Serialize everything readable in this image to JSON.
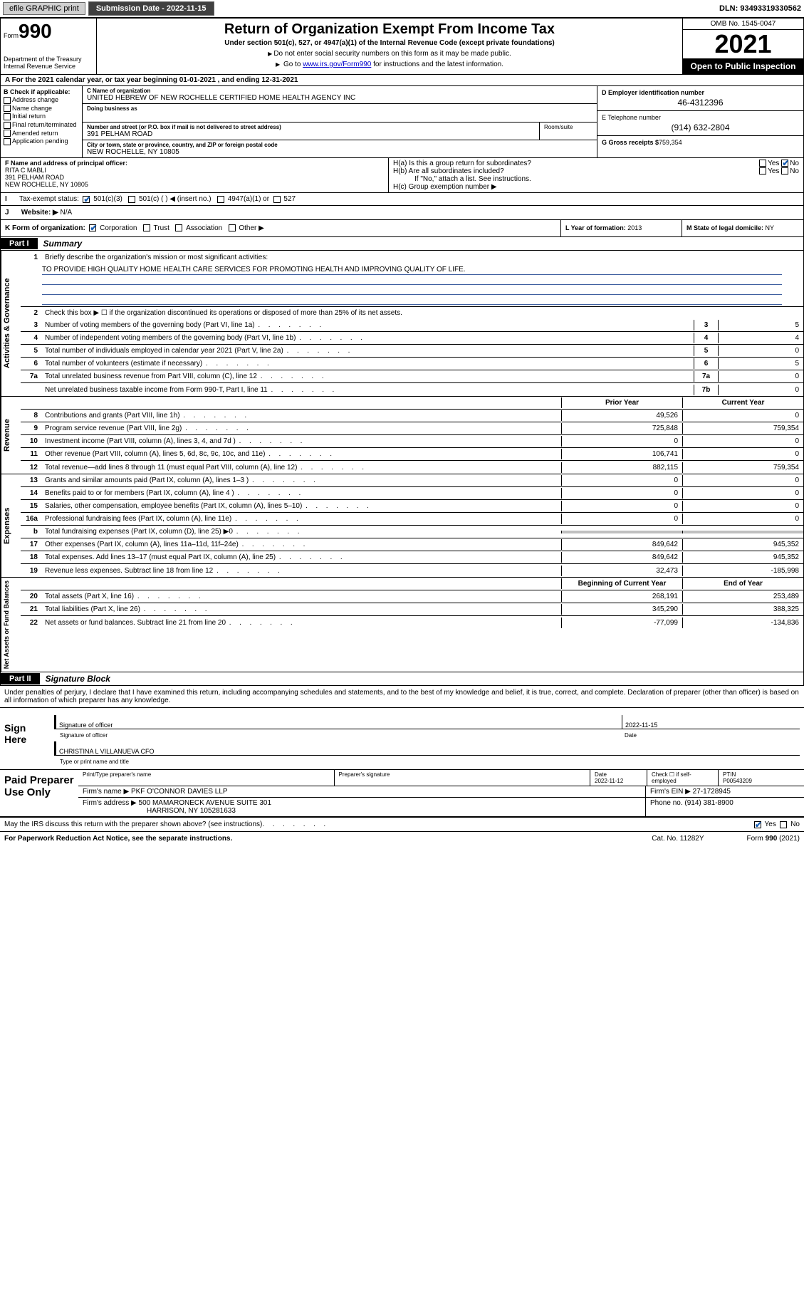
{
  "topbar": {
    "efile": "efile GRAPHIC print",
    "subdate_lbl": "Submission Date - 2022-11-15",
    "dln": "DLN: 93493319330562"
  },
  "header": {
    "form_prefix": "Form",
    "form_no": "990",
    "title": "Return of Organization Exempt From Income Tax",
    "sub": "Under section 501(c), 527, or 4947(a)(1) of the Internal Revenue Code (except private foundations)",
    "note1": "Do not enter social security numbers on this form as it may be made public.",
    "note2_pre": "Go to ",
    "note2_link": "www.irs.gov/Form990",
    "note2_post": " for instructions and the latest information.",
    "dept": "Department of the Treasury\nInternal Revenue Service",
    "omb": "OMB No. 1545-0047",
    "year": "2021",
    "open": "Open to Public Inspection"
  },
  "row_a": "For the 2021 calendar year, or tax year beginning 01-01-2021   , and ending 12-31-2021",
  "col_b": {
    "hdr": "B Check if applicable:",
    "items": [
      "Address change",
      "Name change",
      "Initial return",
      "Final return/terminated",
      "Amended return",
      "Application pending"
    ]
  },
  "col_c": {
    "name_lbl": "C Name of organization",
    "name": "UNITED HEBREW OF NEW ROCHELLE CERTIFIED HOME HEALTH AGENCY INC",
    "dba_lbl": "Doing business as",
    "street_lbl": "Number and street (or P.O. box if mail is not delivered to street address)",
    "street": "391 PELHAM ROAD",
    "suite_lbl": "Room/suite",
    "city_lbl": "City or town, state or province, country, and ZIP or foreign postal code",
    "city": "NEW ROCHELLE, NY  10805"
  },
  "col_d": {
    "ein_lbl": "D Employer identification number",
    "ein": "46-4312396",
    "tel_lbl": "E Telephone number",
    "tel": "(914) 632-2804",
    "gross_lbl": "G Gross receipts $",
    "gross": "759,354"
  },
  "row_f": {
    "lbl": "F Name and address of principal officer:",
    "name": "RITA C MABLI",
    "addr1": "391 PELHAM ROAD",
    "addr2": "NEW ROCHELLE, NY  10805"
  },
  "row_h": {
    "ha": "H(a)  Is this a group return for subordinates?",
    "hb": "H(b)  Are all subordinates included?",
    "hb_note": "If \"No,\" attach a list. See instructions.",
    "hc": "H(c)  Group exemption number ▶",
    "yes": "Yes",
    "no": "No"
  },
  "row_i": {
    "lbl": "Tax-exempt status:",
    "opt1": "501(c)(3)",
    "opt2": "501(c) (   ) ◀ (insert no.)",
    "opt3": "4947(a)(1) or",
    "opt4": "527"
  },
  "row_j": {
    "lbl": "Website: ▶",
    "val": "N/A"
  },
  "row_k": {
    "lbl": "K Form of organization:",
    "opts": [
      "Corporation",
      "Trust",
      "Association",
      "Other ▶"
    ]
  },
  "row_l": {
    "lbl": "L Year of formation:",
    "val": "2013"
  },
  "row_m": {
    "lbl": "M State of legal domicile:",
    "val": "NY"
  },
  "parts": {
    "p1": "Part I",
    "p1t": "Summary",
    "p2": "Part II",
    "p2t": "Signature Block"
  },
  "mission_lbl": "Briefly describe the organization's mission or most significant activities:",
  "mission": "TO PROVIDE HIGH QUALITY HOME HEALTH CARE SERVICES FOR PROMOTING HEALTH AND IMPROVING QUALITY OF LIFE.",
  "line2": "Check this box ▶ ☐  if the organization discontinued its operations or disposed of more than 25% of its net assets.",
  "gov_lines": [
    {
      "n": "3",
      "t": "Number of voting members of the governing body (Part VI, line 1a)",
      "b": "3",
      "v": "5"
    },
    {
      "n": "4",
      "t": "Number of independent voting members of the governing body (Part VI, line 1b)",
      "b": "4",
      "v": "4"
    },
    {
      "n": "5",
      "t": "Total number of individuals employed in calendar year 2021 (Part V, line 2a)",
      "b": "5",
      "v": "0"
    },
    {
      "n": "6",
      "t": "Total number of volunteers (estimate if necessary)",
      "b": "6",
      "v": "5"
    },
    {
      "n": "7a",
      "t": "Total unrelated business revenue from Part VIII, column (C), line 12",
      "b": "7a",
      "v": "0"
    },
    {
      "n": "",
      "t": "Net unrelated business taxable income from Form 990-T, Part I, line 11",
      "b": "7b",
      "v": "0"
    }
  ],
  "col_hdrs": {
    "py": "Prior Year",
    "cy": "Current Year",
    "boy": "Beginning of Current Year",
    "eoy": "End of Year"
  },
  "rev_lines": [
    {
      "n": "8",
      "t": "Contributions and grants (Part VIII, line 1h)",
      "py": "49,526",
      "cy": "0"
    },
    {
      "n": "9",
      "t": "Program service revenue (Part VIII, line 2g)",
      "py": "725,848",
      "cy": "759,354"
    },
    {
      "n": "10",
      "t": "Investment income (Part VIII, column (A), lines 3, 4, and 7d )",
      "py": "0",
      "cy": "0"
    },
    {
      "n": "11",
      "t": "Other revenue (Part VIII, column (A), lines 5, 6d, 8c, 9c, 10c, and 11e)",
      "py": "106,741",
      "cy": "0"
    },
    {
      "n": "12",
      "t": "Total revenue—add lines 8 through 11 (must equal Part VIII, column (A), line 12)",
      "py": "882,115",
      "cy": "759,354"
    }
  ],
  "exp_lines": [
    {
      "n": "13",
      "t": "Grants and similar amounts paid (Part IX, column (A), lines 1–3 )",
      "py": "0",
      "cy": "0"
    },
    {
      "n": "14",
      "t": "Benefits paid to or for members (Part IX, column (A), line 4 )",
      "py": "0",
      "cy": "0"
    },
    {
      "n": "15",
      "t": "Salaries, other compensation, employee benefits (Part IX, column (A), lines 5–10)",
      "py": "0",
      "cy": "0"
    },
    {
      "n": "16a",
      "t": "Professional fundraising fees (Part IX, column (A), line 11e)",
      "py": "0",
      "cy": "0"
    },
    {
      "n": "b",
      "t": "Total fundraising expenses (Part IX, column (D), line 25) ▶0",
      "py": "",
      "cy": "",
      "shade": true
    },
    {
      "n": "17",
      "t": "Other expenses (Part IX, column (A), lines 11a–11d, 11f–24e)",
      "py": "849,642",
      "cy": "945,352"
    },
    {
      "n": "18",
      "t": "Total expenses. Add lines 13–17 (must equal Part IX, column (A), line 25)",
      "py": "849,642",
      "cy": "945,352"
    },
    {
      "n": "19",
      "t": "Revenue less expenses. Subtract line 18 from line 12",
      "py": "32,473",
      "cy": "-185,998"
    }
  ],
  "bal_lines": [
    {
      "n": "20",
      "t": "Total assets (Part X, line 16)",
      "py": "268,191",
      "cy": "253,489"
    },
    {
      "n": "21",
      "t": "Total liabilities (Part X, line 26)",
      "py": "345,290",
      "cy": "388,325"
    },
    {
      "n": "22",
      "t": "Net assets or fund balances. Subtract line 21 from line 20",
      "py": "-77,099",
      "cy": "-134,836"
    }
  ],
  "penalty": "Under penalties of perjury, I declare that I have examined this return, including accompanying schedules and statements, and to the best of my knowledge and belief, it is true, correct, and complete. Declaration of preparer (other than officer) is based on all information of which preparer has any knowledge.",
  "sign": {
    "hdr": "Sign Here",
    "sig_lbl": "Signature of officer",
    "date_lbl": "Date",
    "date": "2022-11-15",
    "name": "CHRISTINA L VILLANUEVA  CFO",
    "name_lbl": "Type or print name and title"
  },
  "paid": {
    "hdr": "Paid Preparer Use Only",
    "cols": [
      "Print/Type preparer's name",
      "Preparer's signature",
      "Date",
      "Check ☐ if self-employed",
      "PTIN"
    ],
    "date": "2022-11-12",
    "ptin": "P00543209",
    "firm_lbl": "Firm's name    ▶",
    "firm": "PKF O'CONNOR DAVIES LLP",
    "ein_lbl": "Firm's EIN ▶",
    "ein": "27-1728945",
    "addr_lbl": "Firm's address ▶",
    "addr1": "500 MAMARONECK AVENUE SUITE 301",
    "addr2": "HARRISON, NY  105281633",
    "phone_lbl": "Phone no.",
    "phone": "(914) 381-8900"
  },
  "discuss": "May the IRS discuss this return with the preparer shown above? (see instructions)",
  "footer": {
    "pra": "For Paperwork Reduction Act Notice, see the separate instructions.",
    "cat": "Cat. No. 11282Y",
    "form": "Form 990 (2021)"
  },
  "colors": {
    "link": "#0000cc",
    "check": "#1a5fb4",
    "rule": "#4060a0"
  }
}
